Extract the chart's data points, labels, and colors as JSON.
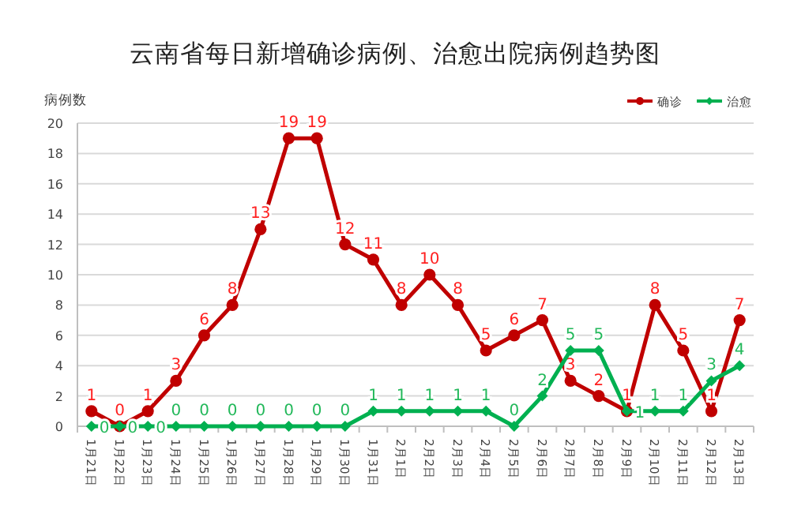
{
  "chart_data": {
    "type": "line",
    "title": "云南省每日新增确诊病例、治愈出院病例趋势图",
    "ylabel": "病例数",
    "categories": [
      "1月21日",
      "1月22日",
      "1月23日",
      "1月24日",
      "1月25日",
      "1月26日",
      "1月27日",
      "1月28日",
      "1月29日",
      "1月30日",
      "1月31日",
      "2月1日",
      "2月2日",
      "2月3日",
      "2月4日",
      "2月5日",
      "2月6日",
      "2月7日",
      "2月8日",
      "2月9日",
      "2月10日",
      "2月11日",
      "2月12日",
      "2月13日"
    ],
    "series": [
      {
        "name": "确诊",
        "color": "#c00000",
        "marker": "circle",
        "values": [
          1,
          0,
          1,
          3,
          6,
          8,
          13,
          19,
          19,
          12,
          11,
          8,
          10,
          8,
          5,
          6,
          7,
          3,
          2,
          1,
          8,
          5,
          1,
          7
        ]
      },
      {
        "name": "治愈",
        "color": "#00b050",
        "marker": "diamond",
        "values": [
          0,
          0,
          0,
          0,
          0,
          0,
          0,
          0,
          0,
          0,
          1,
          1,
          1,
          1,
          1,
          0,
          2,
          5,
          5,
          1,
          1,
          1,
          3,
          4
        ]
      }
    ],
    "ylim": [
      0,
      20
    ],
    "yticks": [
      0,
      2,
      4,
      6,
      8,
      10,
      12,
      14,
      16,
      18,
      20
    ],
    "grid": "y",
    "legend": "top right",
    "data_labels": true
  }
}
